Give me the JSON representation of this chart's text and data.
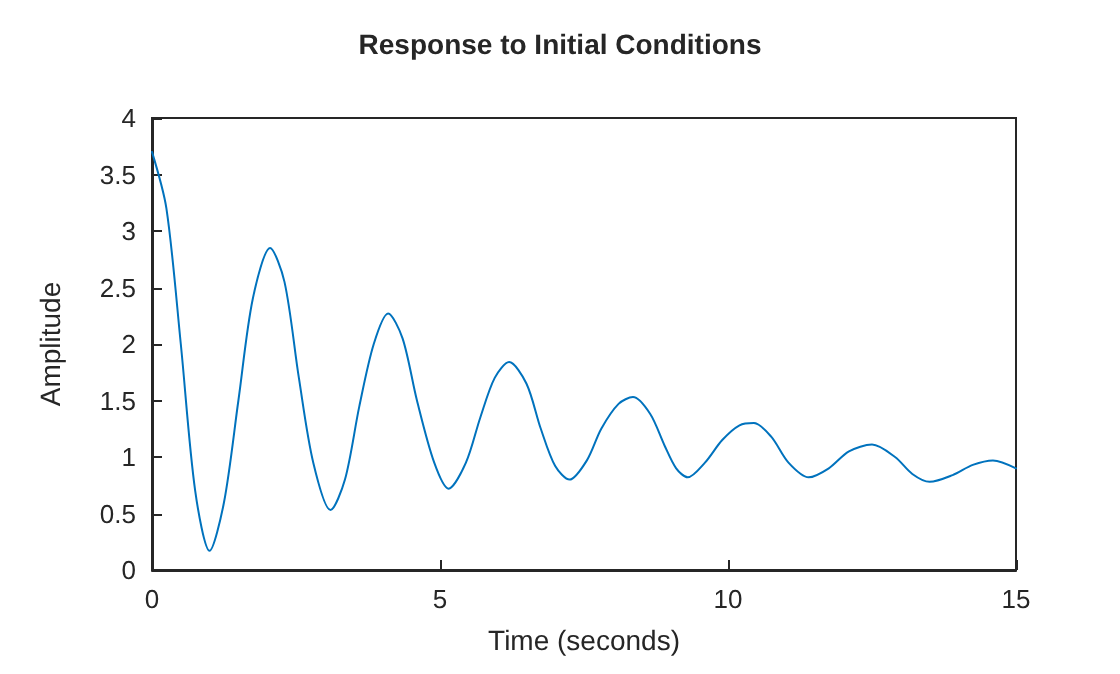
{
  "chart_data": {
    "type": "line",
    "title": "Response to Initial Conditions",
    "xlabel": "Time (seconds)",
    "ylabel": "Amplitude",
    "xlim": [
      0,
      15
    ],
    "xticks": [
      0,
      5,
      10,
      15
    ],
    "ylim": [
      0,
      4
    ],
    "yticks": [
      0,
      0.5,
      1,
      1.5,
      2,
      2.5,
      3,
      3.5,
      4
    ],
    "grid": false,
    "marker": "none",
    "line_style": "solid",
    "series": [
      {
        "color": "#0072bd",
        "x": [
          0,
          0.25,
          0.5,
          0.75,
          1.0,
          1.25,
          1.5,
          1.75,
          2.05,
          2.3,
          2.55,
          2.8,
          3.1,
          3.35,
          3.6,
          3.85,
          4.1,
          4.35,
          4.6,
          4.9,
          5.15,
          5.45,
          5.7,
          5.95,
          6.2,
          6.5,
          6.75,
          7.0,
          7.25,
          7.55,
          7.8,
          8.1,
          8.35,
          8.65,
          8.9,
          9.1,
          9.3,
          9.6,
          9.9,
          10.2,
          10.45,
          10.75,
          11.05,
          11.4,
          11.75,
          12.1,
          12.5,
          12.9,
          13.2,
          13.5,
          13.9,
          14.25,
          14.6,
          15.0
        ],
        "values": [
          3.7,
          3.2,
          2.0,
          0.7,
          0.17,
          0.6,
          1.5,
          2.4,
          2.85,
          2.55,
          1.7,
          0.95,
          0.53,
          0.8,
          1.45,
          2.0,
          2.27,
          2.05,
          1.5,
          0.95,
          0.72,
          0.95,
          1.35,
          1.7,
          1.84,
          1.65,
          1.25,
          0.92,
          0.8,
          0.97,
          1.25,
          1.47,
          1.53,
          1.38,
          1.1,
          0.9,
          0.82,
          0.95,
          1.15,
          1.28,
          1.3,
          1.18,
          0.95,
          0.82,
          0.9,
          1.05,
          1.11,
          1.0,
          0.85,
          0.78,
          0.84,
          0.93,
          0.97,
          0.9
        ]
      }
    ]
  }
}
